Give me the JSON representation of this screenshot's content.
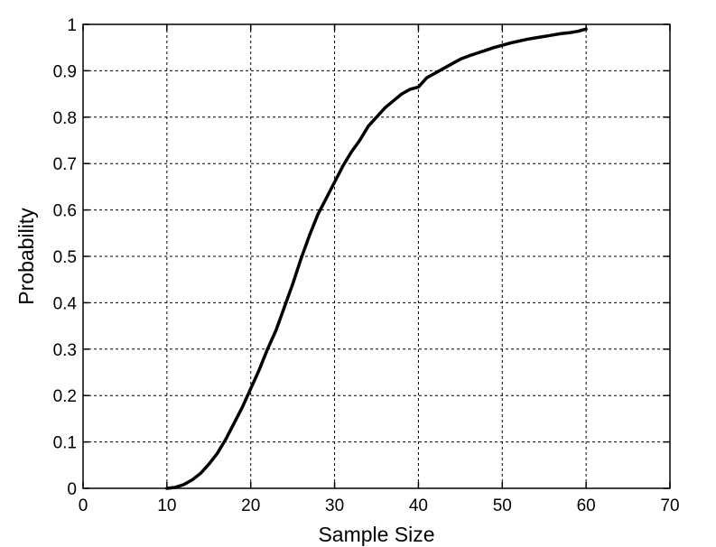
{
  "chart_data": {
    "type": "line",
    "title": "",
    "xlabel": "Sample Size",
    "ylabel": "Probability",
    "xlim": [
      0,
      70
    ],
    "ylim": [
      0,
      1
    ],
    "xticks": [
      0,
      10,
      20,
      30,
      40,
      50,
      60,
      70
    ],
    "yticks": [
      0,
      0.1,
      0.2,
      0.3,
      0.4,
      0.5,
      0.6,
      0.7,
      0.8,
      0.9,
      1
    ],
    "grid": true,
    "line_color": "#000000",
    "series": [
      {
        "x": [
          10,
          11,
          12,
          13,
          14,
          15,
          16,
          17,
          18,
          19,
          20,
          21,
          22,
          23,
          24,
          25,
          26,
          27,
          28,
          29,
          30,
          31,
          32,
          33,
          34,
          35,
          36,
          37,
          38,
          39,
          40,
          41,
          42,
          43,
          44,
          45,
          46,
          47,
          48,
          49,
          50,
          51,
          52,
          53,
          54,
          55,
          56,
          57,
          58,
          59,
          60
        ],
        "y": [
          0.0,
          0.002,
          0.008,
          0.018,
          0.032,
          0.052,
          0.075,
          0.105,
          0.14,
          0.175,
          0.215,
          0.255,
          0.3,
          0.34,
          0.39,
          0.44,
          0.495,
          0.545,
          0.59,
          0.625,
          0.66,
          0.695,
          0.725,
          0.75,
          0.78,
          0.8,
          0.82,
          0.835,
          0.85,
          0.86,
          0.865,
          0.885,
          0.895,
          0.905,
          0.915,
          0.925,
          0.932,
          0.938,
          0.944,
          0.95,
          0.955,
          0.96,
          0.964,
          0.968,
          0.971,
          0.974,
          0.977,
          0.98,
          0.982,
          0.985,
          0.99
        ]
      }
    ]
  }
}
